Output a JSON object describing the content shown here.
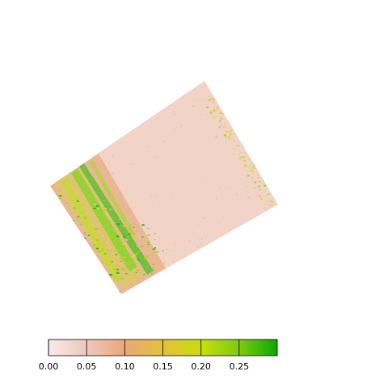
{
  "raster": {
    "colormap": [
      "#f7eaea",
      "#f0c8bc",
      "#e9a977",
      "#e4c13a",
      "#c9de0a",
      "#7dcc10",
      "#0aa800"
    ],
    "base_color": "#f0cdbf"
  },
  "legend": {
    "range": [
      0.0,
      0.3
    ],
    "ticks": [
      {
        "value": 0.0,
        "label": "0.00"
      },
      {
        "value": 0.05,
        "label": "0.05"
      },
      {
        "value": 0.1,
        "label": "0.10"
      },
      {
        "value": 0.15,
        "label": "0.15"
      },
      {
        "value": 0.2,
        "label": "0.20"
      },
      {
        "value": 0.25,
        "label": "0.25"
      }
    ]
  }
}
